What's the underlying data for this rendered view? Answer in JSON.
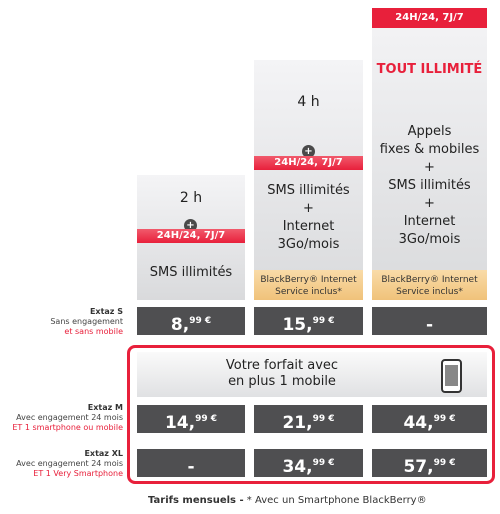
{
  "top_banner": "24H/24, 7J/7",
  "tout_illimite": "TOUT ILLIMITÉ",
  "hours": {
    "col1": "2 h",
    "col2": "4 h"
  },
  "plus_symbol": "+",
  "red_band": {
    "col1": "24H/24, 7J/7",
    "col2": "24H/24, 7J/7"
  },
  "features": {
    "col1": [
      "SMS illimités"
    ],
    "col2": [
      "SMS illimités",
      "+",
      "Internet",
      "3Go/mois"
    ],
    "col3": [
      "Appels",
      "fixes & mobiles",
      "+",
      "SMS illimités",
      "+",
      "Internet",
      "3Go/mois"
    ]
  },
  "blackberry": {
    "line1": "BlackBerry® Internet",
    "line2": "Service inclus*"
  },
  "rows": {
    "extaz_s": {
      "name": "Extaz S",
      "line1": "Sans engagement",
      "line2": "et sans mobile"
    },
    "extaz_m": {
      "name": "Extaz M",
      "line1": "Avec engagement 24 mois",
      "line2": "ET 1 smartphone ou mobile"
    },
    "extaz_xl": {
      "name": "Extaz XL",
      "line1": "Avec engagement 24 mois",
      "line2": "ET 1 Very Smartphone"
    }
  },
  "prices": {
    "s": [
      {
        "main": "8,",
        "cents": "99 €"
      },
      {
        "main": "15,",
        "cents": "99 €"
      },
      {
        "main": "-",
        "cents": ""
      }
    ],
    "m": [
      {
        "main": "14,",
        "cents": "99 €"
      },
      {
        "main": "21,",
        "cents": "99 €"
      },
      {
        "main": "44,",
        "cents": "99 €"
      }
    ],
    "xl": [
      {
        "main": "-",
        "cents": ""
      },
      {
        "main": "34,",
        "cents": "99 €"
      },
      {
        "main": "57,",
        "cents": "99 €"
      }
    ]
  },
  "mobile_banner": {
    "line1": "Votre forfait avec",
    "line2": "en plus 1 mobile"
  },
  "footer": {
    "bold": "Tarifs mensuels -",
    "rest": " * Avec un Smartphone BlackBerry®"
  },
  "colors": {
    "accent": "#e8203b",
    "price_bg": "#4f4f51",
    "blackberry_bg": "#f0c27a"
  }
}
